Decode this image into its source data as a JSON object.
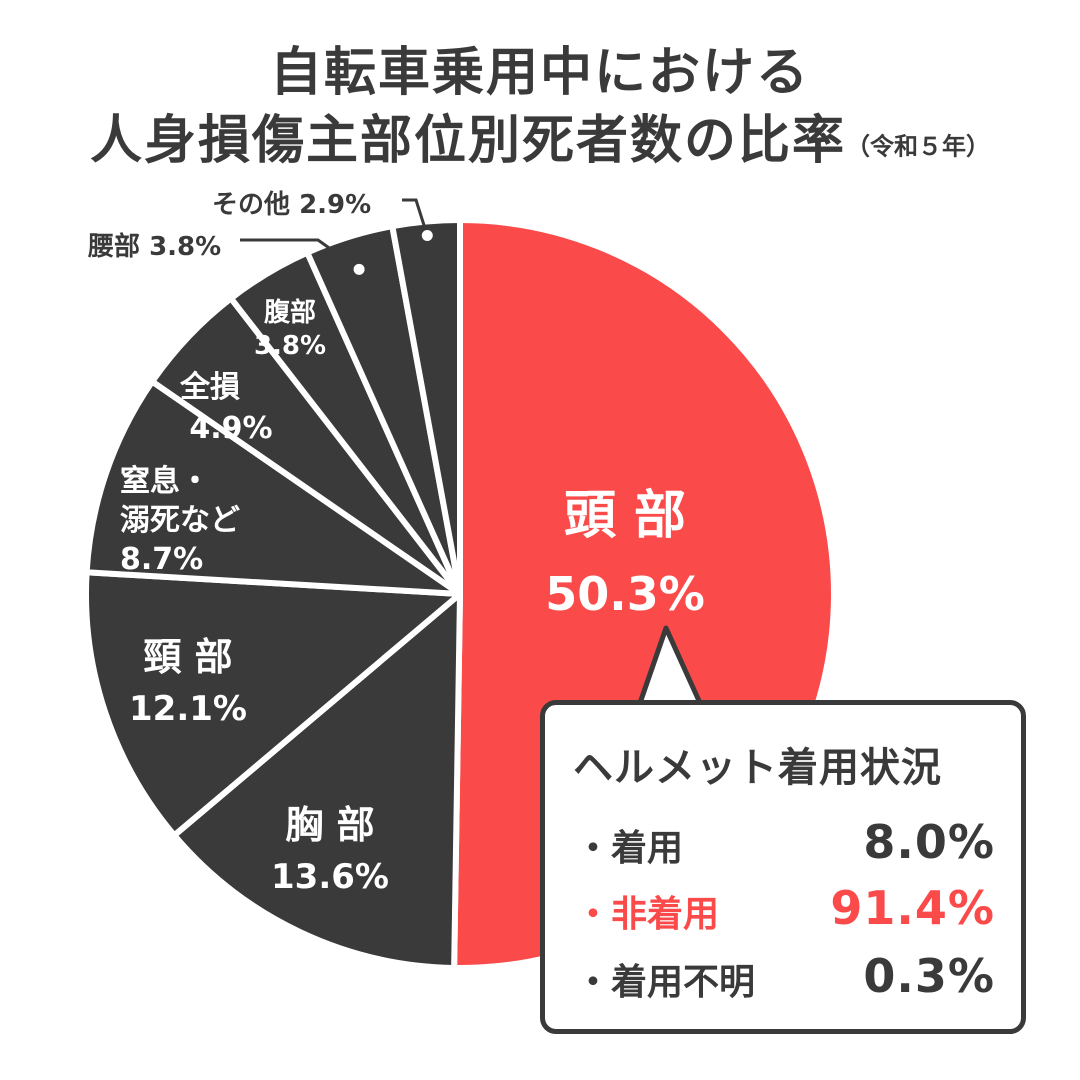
{
  "title_line1": "自転車乗用中における",
  "title_line2": "人身損傷主部位別死者数の比率",
  "title_sub": "（令和５年）",
  "chart_data": {
    "type": "pie",
    "slices": [
      {
        "label_lines": [
          "頭 部"
        ],
        "value": 50.3,
        "value_text": "50.3%",
        "color": "#fa4a4a"
      },
      {
        "label_lines": [
          "胸 部"
        ],
        "value": 13.6,
        "value_text": "13.6%",
        "color": "#3a3a3a"
      },
      {
        "label_lines": [
          "頸 部"
        ],
        "value": 12.1,
        "value_text": "12.1%",
        "color": "#3a3a3a"
      },
      {
        "label_lines": [
          "窒息・",
          "溺死など"
        ],
        "value": 8.7,
        "value_text": "8.7%",
        "color": "#3a3a3a"
      },
      {
        "label_lines": [
          "全損"
        ],
        "value": 4.9,
        "value_text": "4.9%",
        "color": "#3a3a3a"
      },
      {
        "label_lines": [
          "腹部"
        ],
        "value": 3.8,
        "value_text": "3.8%",
        "color": "#3a3a3a"
      },
      {
        "label_lines": [
          "腰部"
        ],
        "value": 3.8,
        "value_text": "3.8%",
        "color": "#3a3a3a"
      },
      {
        "label_lines": [
          "その他"
        ],
        "value": 2.9,
        "value_text": "2.9%",
        "color": "#3a3a3a"
      }
    ]
  },
  "helmet": {
    "title": "ヘルメット着用状況",
    "rows": [
      {
        "label": "・着用",
        "value": "8.0%"
      },
      {
        "label": "・非着用",
        "value": "91.4%"
      },
      {
        "label": "・着用不明",
        "value": "0.3%"
      }
    ]
  }
}
